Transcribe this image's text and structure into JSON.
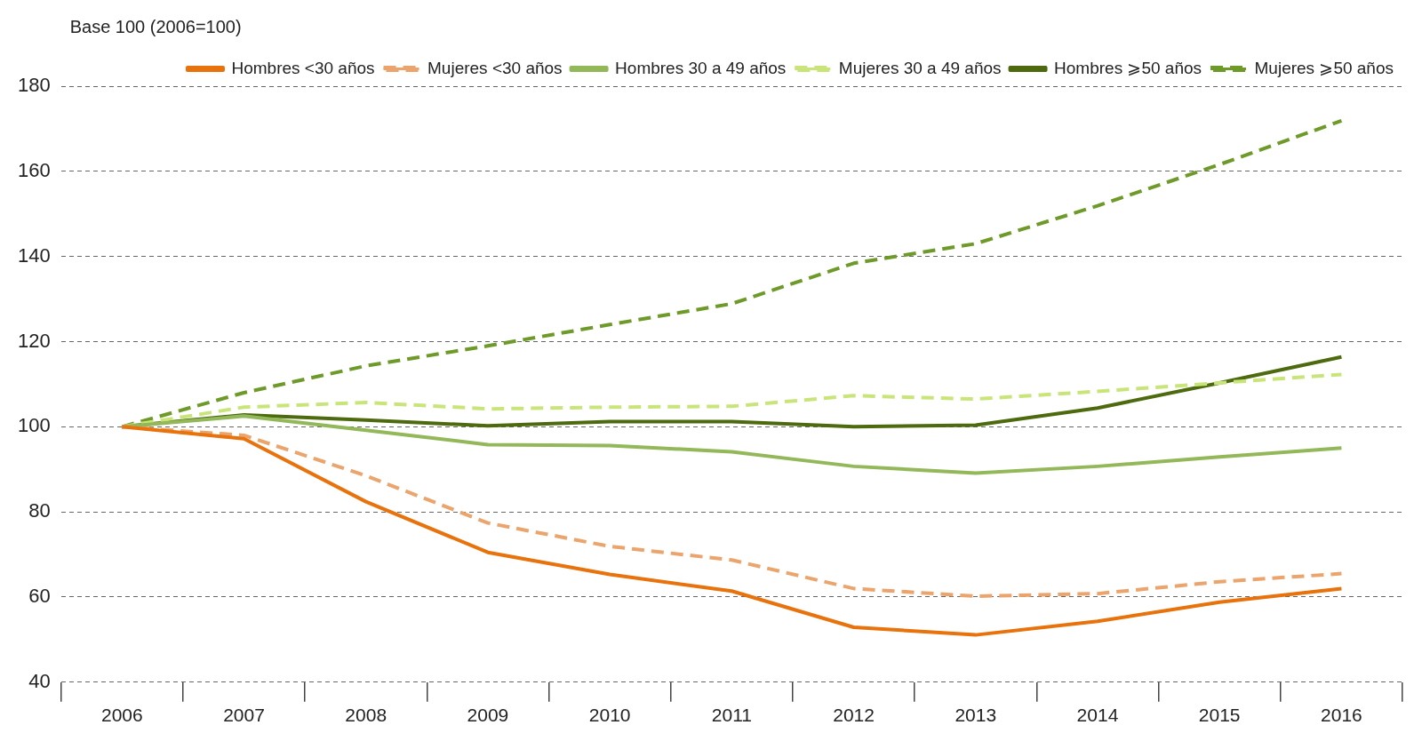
{
  "chart_data": {
    "type": "line",
    "ylabel": "Base 100 (2006=100)",
    "categories": [
      "2006",
      "2007",
      "2008",
      "2009",
      "2010",
      "2011",
      "2012",
      "2013",
      "2014",
      "2015",
      "2016"
    ],
    "ylim": [
      40,
      180
    ],
    "yticks": [
      40,
      60,
      80,
      100,
      120,
      140,
      160,
      180
    ],
    "grid": "y",
    "legend": "top",
    "marker": "none",
    "series": [
      {
        "name": "Hombres <30 años",
        "color": "#e8720c",
        "line_style": "solid",
        "values": [
          100,
          97.2,
          82.4,
          70.5,
          65.3,
          61.4,
          52.9,
          51.1,
          54.3,
          58.8,
          62
        ]
      },
      {
        "name": "Mujeres <30 años",
        "color": "#eba46c",
        "line_style": "dashed",
        "values": [
          100,
          98,
          88.5,
          77.4,
          71.9,
          68.7,
          62,
          60.2,
          60.8,
          63.6,
          65.5
        ]
      },
      {
        "name": "Hombres 30 a 49 años",
        "color": "#93b85a",
        "line_style": "solid",
        "values": [
          100,
          102.5,
          99.2,
          95.8,
          95.6,
          94.1,
          90.7,
          89.1,
          90.7,
          92.9,
          95
        ]
      },
      {
        "name": "Mujeres 30 a 49 años",
        "color": "#c9e57a",
        "line_style": "dashed",
        "values": [
          100,
          104.6,
          105.7,
          104.2,
          104.6,
          104.8,
          107.3,
          106.5,
          108.3,
          110.3,
          112.3
        ]
      },
      {
        "name": "Hombres ⩾50 años",
        "color": "#4d6b0e",
        "line_style": "solid",
        "values": [
          100,
          102.8,
          101.6,
          100.2,
          101.2,
          101.2,
          100,
          100.4,
          104.4,
          110.3,
          116.4
        ]
      },
      {
        "name": "Mujeres ⩾50 años",
        "color": "#6e9a2a",
        "line_style": "dashed",
        "values": [
          100,
          108,
          114.3,
          119,
          124,
          128.9,
          138.4,
          143,
          151.9,
          161.6,
          171.9
        ]
      }
    ]
  }
}
